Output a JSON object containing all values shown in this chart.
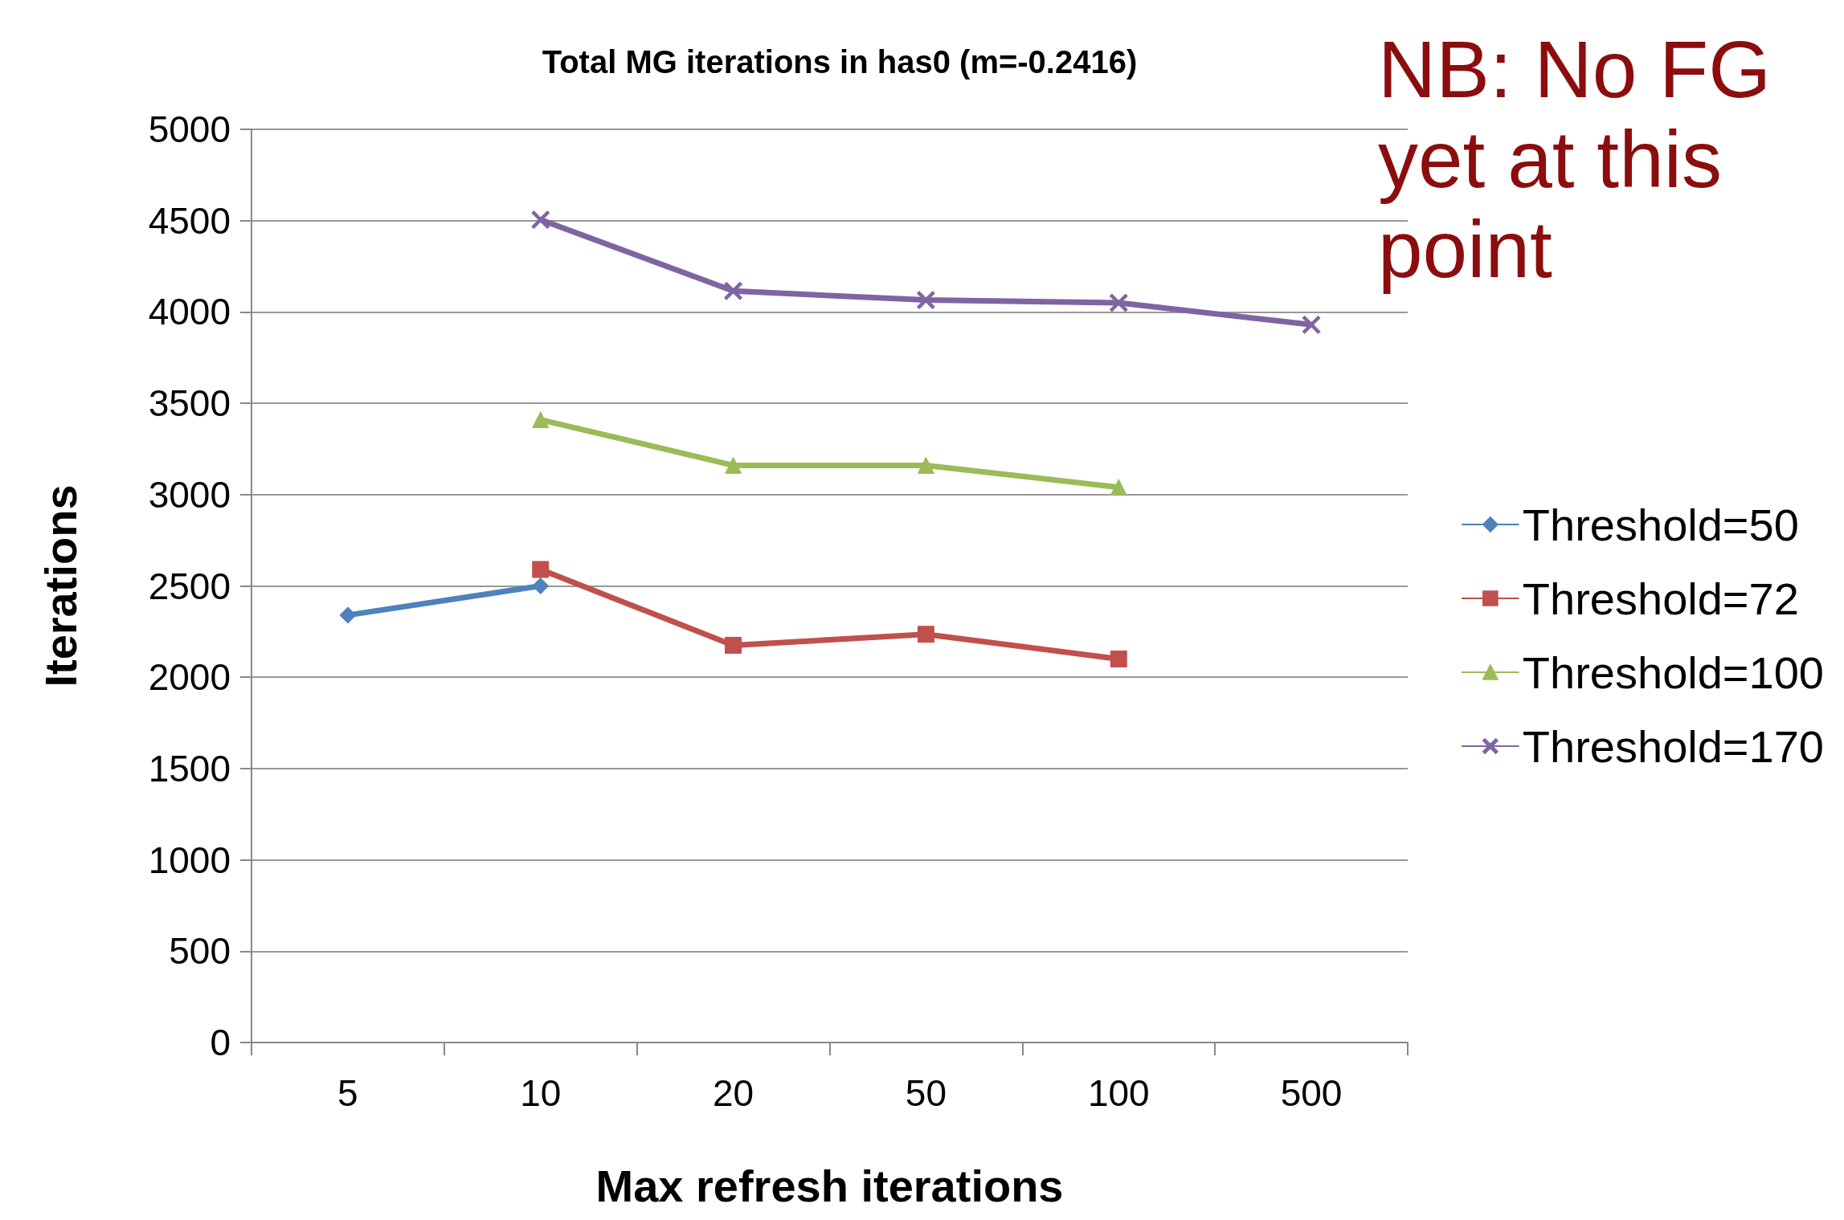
{
  "chart_data": {
    "type": "line",
    "title": "Total MG iterations in has0 (m=-0.2416)",
    "xlabel": "Max refresh iterations",
    "ylabel": "Iterations",
    "categories": [
      "5",
      "10",
      "20",
      "50",
      "100",
      "500"
    ],
    "series": [
      {
        "name": "Threshold=50",
        "color": "#4f81bd",
        "marker": "diamond",
        "values": [
          2340,
          2500,
          null,
          null,
          null,
          null
        ]
      },
      {
        "name": "Threshold=72",
        "color": "#c0504d",
        "marker": "square",
        "values": [
          null,
          2590,
          2175,
          2235,
          2100,
          null
        ]
      },
      {
        "name": "Threshold=100",
        "color": "#9bbb59",
        "marker": "triangle",
        "values": [
          null,
          3410,
          3160,
          3160,
          3040,
          null
        ]
      },
      {
        "name": "Threshold=170",
        "color": "#8064a2",
        "marker": "cross",
        "values": [
          null,
          4505,
          4115,
          4065,
          4050,
          3930
        ]
      }
    ],
    "ylim": [
      0,
      5000
    ],
    "yticks": [
      0,
      500,
      1000,
      1500,
      2000,
      2500,
      3000,
      3500,
      4000,
      4500,
      5000
    ],
    "grid": "y",
    "legend": "right",
    "line_style": "solid",
    "annotations": [
      "NB: No FG yet at this point"
    ]
  }
}
